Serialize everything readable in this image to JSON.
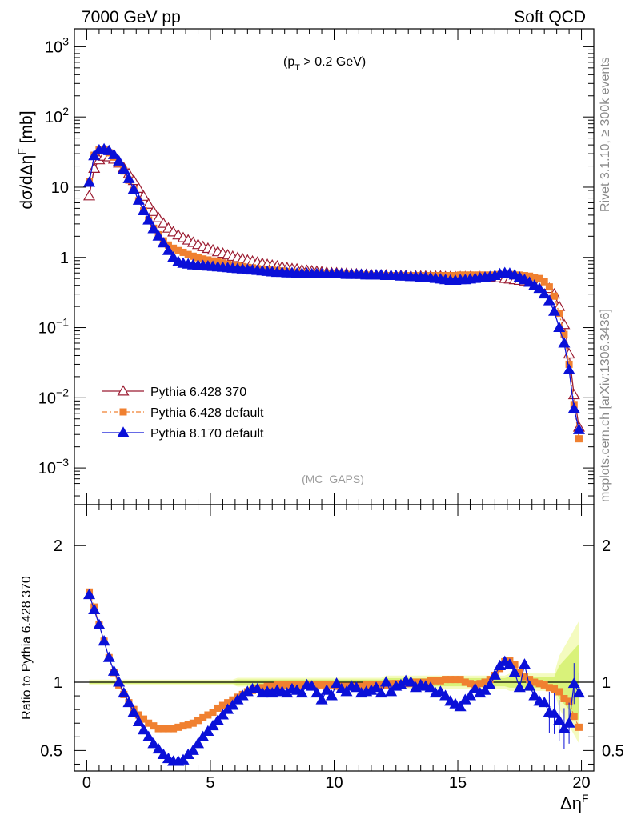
{
  "header": {
    "left": "7000 GeV pp",
    "right": "Soft QCD"
  },
  "side_text": {
    "top": "Rivet 3.1.10, ≥ 300k events",
    "bottom": "mcplots.cern.ch [arXiv:1306.3436]"
  },
  "colors": {
    "p6_370": "#9b1b30",
    "p6_def": "#f08030",
    "p8": "#0a10d8",
    "band_inner": "#d9f27a",
    "band_outer": "#f4fbbf"
  },
  "chart_data": [
    {
      "type": "line",
      "title": "",
      "annotation": "(pT > 0.2 GeV)",
      "annotation_base": "(p",
      "annotation_sub": "T",
      "annotation_tail": " > 0.2 GeV)",
      "tag": "(MC_GAPS)",
      "ylabel": "dσ/dΔηF [mb]",
      "yscale": "log",
      "ylim": [
        0.0003,
        1800
      ],
      "xlim": [
        -0.5,
        20.5
      ],
      "ytick_labels": [
        {
          "v": 1000,
          "base": "10",
          "exp": "3"
        },
        {
          "v": 100,
          "base": "10",
          "exp": "2"
        },
        {
          "v": 10,
          "base": "10",
          "exp": ""
        },
        {
          "v": 1,
          "base": "1",
          "exp": ""
        },
        {
          "v": 0.1,
          "base": "10",
          "exp": "−1"
        },
        {
          "v": 0.01,
          "base": "10",
          "exp": "−2"
        },
        {
          "v": 0.001,
          "base": "10",
          "exp": "−3"
        }
      ],
      "legend": {
        "placement": "lower-left"
      },
      "x": [
        0.1,
        0.3,
        0.5,
        0.7,
        0.9,
        1.1,
        1.3,
        1.5,
        1.7,
        1.9,
        2.1,
        2.3,
        2.5,
        2.7,
        2.9,
        3.1,
        3.3,
        3.5,
        3.7,
        3.9,
        4.1,
        4.3,
        4.5,
        4.7,
        4.9,
        5.1,
        5.3,
        5.5,
        5.7,
        5.9,
        6.1,
        6.3,
        6.5,
        6.7,
        6.9,
        7.1,
        7.3,
        7.5,
        7.7,
        7.9,
        8.1,
        8.3,
        8.5,
        8.7,
        8.9,
        9.1,
        9.3,
        9.5,
        9.7,
        9.9,
        10.1,
        10.3,
        10.5,
        10.7,
        10.9,
        11.1,
        11.3,
        11.5,
        11.7,
        11.9,
        12.1,
        12.3,
        12.5,
        12.7,
        12.9,
        13.1,
        13.3,
        13.5,
        13.7,
        13.9,
        14.1,
        14.3,
        14.5,
        14.7,
        14.9,
        15.1,
        15.3,
        15.5,
        15.7,
        15.9,
        16.1,
        16.3,
        16.5,
        16.7,
        16.9,
        17.1,
        17.3,
        17.5,
        17.7,
        17.9,
        18.1,
        18.3,
        18.5,
        18.7,
        18.9,
        19.1,
        19.3,
        19.5,
        19.7,
        19.9
      ],
      "series": [
        {
          "name": "Pythia 6.428 370",
          "values": [
            7.5,
            18.5,
            24.5,
            27.5,
            27.0,
            25.0,
            22.0,
            18.8,
            15.5,
            12.4,
            9.6,
            7.4,
            5.7,
            4.5,
            3.65,
            3.05,
            2.6,
            2.3,
            2.08,
            1.9,
            1.76,
            1.63,
            1.52,
            1.42,
            1.34,
            1.27,
            1.2,
            1.14,
            1.08,
            1.03,
            0.99,
            0.95,
            0.91,
            0.88,
            0.85,
            0.82,
            0.79,
            0.77,
            0.75,
            0.73,
            0.71,
            0.69,
            0.68,
            0.66,
            0.65,
            0.64,
            0.63,
            0.62,
            0.61,
            0.6,
            0.6,
            0.59,
            0.59,
            0.58,
            0.58,
            0.57,
            0.57,
            0.57,
            0.56,
            0.56,
            0.56,
            0.55,
            0.55,
            0.55,
            0.55,
            0.54,
            0.54,
            0.54,
            0.54,
            0.54,
            0.54,
            0.54,
            0.53,
            0.53,
            0.53,
            0.53,
            0.53,
            0.53,
            0.53,
            0.53,
            0.52,
            0.52,
            0.52,
            0.51,
            0.5,
            0.49,
            0.48,
            0.47,
            0.46,
            0.45,
            0.44,
            0.42,
            0.4,
            0.36,
            0.3,
            0.2,
            0.11,
            0.042,
            0.011,
            0.0038
          ]
        },
        {
          "name": "Pythia 6.428 default",
          "values": [
            11.9,
            28.5,
            34.0,
            34.5,
            31.0,
            26.8,
            21.8,
            17.0,
            12.6,
            9.0,
            6.4,
            4.6,
            3.4,
            2.6,
            2.1,
            1.72,
            1.5,
            1.35,
            1.25,
            1.18,
            1.1,
            1.04,
            0.99,
            0.95,
            0.92,
            0.89,
            0.86,
            0.83,
            0.8,
            0.78,
            0.76,
            0.74,
            0.72,
            0.71,
            0.69,
            0.68,
            0.67,
            0.66,
            0.65,
            0.64,
            0.63,
            0.62,
            0.61,
            0.6,
            0.6,
            0.59,
            0.59,
            0.58,
            0.58,
            0.58,
            0.57,
            0.57,
            0.57,
            0.56,
            0.56,
            0.56,
            0.56,
            0.55,
            0.55,
            0.55,
            0.55,
            0.55,
            0.55,
            0.55,
            0.55,
            0.55,
            0.55,
            0.55,
            0.55,
            0.55,
            0.55,
            0.55,
            0.55,
            0.55,
            0.55,
            0.56,
            0.56,
            0.56,
            0.56,
            0.56,
            0.56,
            0.56,
            0.56,
            0.57,
            0.57,
            0.57,
            0.56,
            0.56,
            0.55,
            0.54,
            0.52,
            0.5,
            0.45,
            0.38,
            0.28,
            0.16,
            0.08,
            0.03,
            0.008,
            0.0026
          ]
        },
        {
          "name": "Pythia 8.170 default",
          "values": [
            11.7,
            28.0,
            33.8,
            34.8,
            33.0,
            29.0,
            23.5,
            18.0,
            13.2,
            9.3,
            6.5,
            4.6,
            3.4,
            2.55,
            2.0,
            1.6,
            1.25,
            1.0,
            0.87,
            0.82,
            0.8,
            0.78,
            0.77,
            0.76,
            0.75,
            0.74,
            0.73,
            0.72,
            0.71,
            0.7,
            0.69,
            0.68,
            0.67,
            0.66,
            0.65,
            0.64,
            0.63,
            0.62,
            0.61,
            0.61,
            0.6,
            0.6,
            0.59,
            0.59,
            0.59,
            0.58,
            0.58,
            0.58,
            0.58,
            0.58,
            0.58,
            0.58,
            0.57,
            0.57,
            0.57,
            0.57,
            0.56,
            0.56,
            0.56,
            0.56,
            0.55,
            0.55,
            0.55,
            0.54,
            0.54,
            0.53,
            0.53,
            0.52,
            0.52,
            0.51,
            0.5,
            0.49,
            0.48,
            0.47,
            0.47,
            0.48,
            0.48,
            0.49,
            0.5,
            0.51,
            0.52,
            0.53,
            0.55,
            0.58,
            0.6,
            0.59,
            0.56,
            0.52,
            0.48,
            0.44,
            0.4,
            0.36,
            0.3,
            0.24,
            0.17,
            0.1,
            0.06,
            0.025,
            0.007,
            0.0035
          ]
        }
      ]
    },
    {
      "type": "line",
      "ylabel": "Ratio to Pythia 6.428 370",
      "xlabel": "ΔηF",
      "xlabel_base": "Δη",
      "xlabel_sup": "F",
      "ylim": [
        0.35,
        2.3
      ],
      "xlim": [
        -0.5,
        20.5
      ],
      "xticks": [
        0,
        5,
        10,
        15,
        20
      ],
      "yticks": [
        0.5,
        1,
        2
      ],
      "reference": 1,
      "series": [
        {
          "name": "Pythia 6.428 default",
          "values": [
            1.66,
            1.55,
            1.42,
            1.3,
            1.18,
            1.07,
            0.98,
            0.91,
            0.85,
            0.8,
            0.76,
            0.73,
            0.7,
            0.68,
            0.66,
            0.66,
            0.66,
            0.66,
            0.67,
            0.68,
            0.69,
            0.7,
            0.72,
            0.74,
            0.76,
            0.78,
            0.81,
            0.83,
            0.85,
            0.87,
            0.89,
            0.91,
            0.93,
            0.94,
            0.95,
            0.96,
            0.97,
            0.97,
            0.98,
            0.98,
            0.98,
            0.98,
            0.98,
            0.98,
            0.98,
            0.98,
            0.98,
            0.98,
            0.98,
            0.98,
            0.97,
            0.97,
            0.97,
            0.97,
            0.97,
            0.97,
            0.98,
            0.98,
            0.98,
            0.98,
            0.98,
            0.99,
            0.99,
            0.99,
            0.99,
            0.99,
            1.0,
            1.0,
            1.0,
            1.01,
            1.01,
            1.01,
            1.02,
            1.02,
            1.02,
            1.02,
            1.0,
            0.99,
            0.98,
            0.99,
            1.0,
            1.02,
            1.05,
            1.1,
            1.15,
            1.16,
            1.13,
            1.07,
            1.04,
            1.02,
            1.0,
            0.99,
            0.98,
            0.96,
            0.95,
            0.93,
            0.88,
            0.86,
            0.75,
            0.67
          ]
        },
        {
          "name": "Pythia 8.170 default",
          "values": [
            1.64,
            1.53,
            1.42,
            1.3,
            1.18,
            1.08,
            1.0,
            0.92,
            0.85,
            0.78,
            0.71,
            0.65,
            0.6,
            0.55,
            0.51,
            0.47,
            0.44,
            0.42,
            0.42,
            0.43,
            0.47,
            0.5,
            0.55,
            0.6,
            0.64,
            0.68,
            0.72,
            0.76,
            0.8,
            0.83,
            0.87,
            0.9,
            0.93,
            0.95,
            0.95,
            0.92,
            0.93,
            0.92,
            0.94,
            0.93,
            0.92,
            0.95,
            0.94,
            0.92,
            0.98,
            0.97,
            0.92,
            0.87,
            0.94,
            0.9,
            0.99,
            0.95,
            0.93,
            0.97,
            0.96,
            0.92,
            0.93,
            0.94,
            0.96,
            0.92,
            1.0,
            0.93,
            0.97,
            0.98,
            1.01,
            1.0,
            0.96,
            0.98,
            0.97,
            0.96,
            0.92,
            0.93,
            0.9,
            0.86,
            0.84,
            0.82,
            0.87,
            0.9,
            0.95,
            0.92,
            0.94,
            0.98,
            1.05,
            1.12,
            1.15,
            1.13,
            1.07,
            0.96,
            1.13,
            0.97,
            0.9,
            0.86,
            0.85,
            0.78,
            0.77,
            0.72,
            0.66,
            0.7,
            0.99,
            0.92
          ]
        }
      ]
    }
  ]
}
